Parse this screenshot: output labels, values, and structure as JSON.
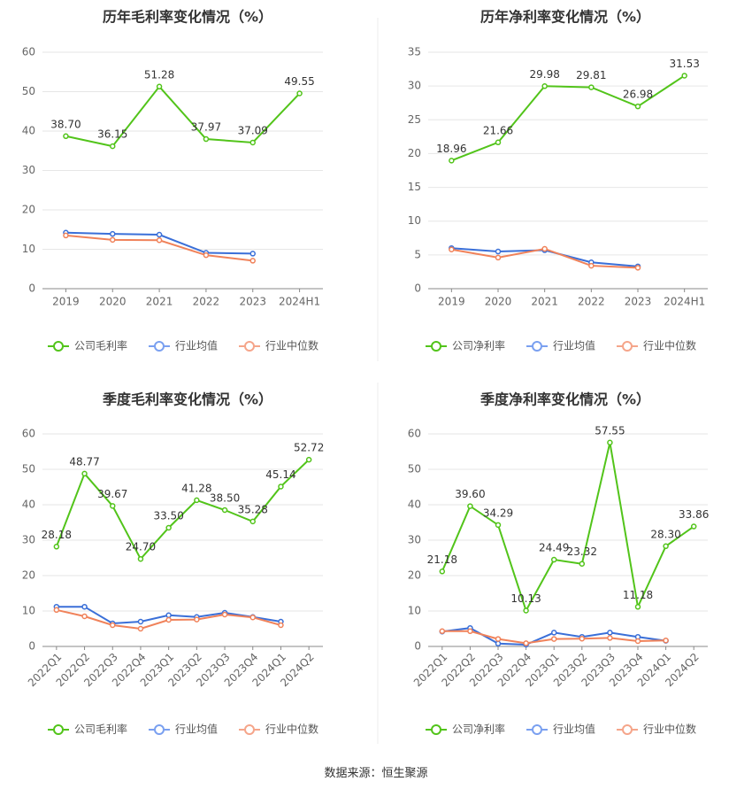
{
  "colors": {
    "company": "#52c41a",
    "industry_avg": "#3a6fd8",
    "industry_median": "#f0825a",
    "grid": "#e6e6e6",
    "axis": "#888888",
    "text": "#444444",
    "divider": "#eeeeee"
  },
  "legend_labels": {
    "gross_company": "公司毛利率",
    "net_company": "公司净利率",
    "industry_avg": "行业均值",
    "industry_median": "行业中位数"
  },
  "footer": "数据来源：恒生聚源",
  "chart_data": [
    {
      "type": "line",
      "title": "历年毛利率变化情况（%）",
      "categories": [
        "2019",
        "2020",
        "2021",
        "2022",
        "2023",
        "2024H1"
      ],
      "ylim": [
        0,
        60
      ],
      "yticks": [
        0,
        10,
        20,
        30,
        40,
        50,
        60
      ],
      "series": [
        {
          "name": "公司毛利率",
          "role": "company",
          "values": [
            38.7,
            36.15,
            51.28,
            37.97,
            37.09,
            49.55
          ],
          "labels": [
            "38.70",
            "36.15",
            "51.28",
            "37.97",
            "37.09",
            "49.55"
          ]
        },
        {
          "name": "行业均值",
          "role": "industry_avg",
          "values": [
            14.2,
            13.9,
            13.7,
            9.1,
            8.9,
            null
          ]
        },
        {
          "name": "行业中位数",
          "role": "industry_median",
          "values": [
            13.5,
            12.4,
            12.3,
            8.5,
            7.1,
            null
          ]
        }
      ],
      "legend": "bottom"
    },
    {
      "type": "line",
      "title": "历年净利率变化情况（%）",
      "categories": [
        "2019",
        "2020",
        "2021",
        "2022",
        "2023",
        "2024H1"
      ],
      "ylim": [
        0,
        35
      ],
      "yticks": [
        0,
        5,
        10,
        15,
        20,
        25,
        30,
        35
      ],
      "series": [
        {
          "name": "公司净利率",
          "role": "company",
          "values": [
            18.96,
            21.66,
            29.98,
            29.81,
            26.98,
            31.53
          ],
          "labels": [
            "18.96",
            "21.66",
            "29.98",
            "29.81",
            "26.98",
            "31.53"
          ]
        },
        {
          "name": "行业均值",
          "role": "industry_avg",
          "values": [
            6.0,
            5.5,
            5.7,
            3.9,
            3.3,
            null
          ]
        },
        {
          "name": "行业中位数",
          "role": "industry_median",
          "values": [
            5.8,
            4.6,
            5.9,
            3.4,
            3.1,
            null
          ]
        }
      ],
      "legend": "bottom"
    },
    {
      "type": "line",
      "title": "季度毛利率变化情况（%）",
      "categories": [
        "2022Q1",
        "2022Q2",
        "2022Q3",
        "2022Q4",
        "2023Q1",
        "2023Q2",
        "2023Q3",
        "2023Q4",
        "2024Q1",
        "2024Q2"
      ],
      "ylim": [
        0,
        60
      ],
      "yticks": [
        0,
        10,
        20,
        30,
        40,
        50,
        60
      ],
      "series": [
        {
          "name": "公司毛利率",
          "role": "company",
          "values": [
            28.18,
            48.77,
            39.67,
            24.7,
            33.5,
            41.28,
            38.5,
            35.28,
            45.14,
            52.72
          ],
          "labels": [
            "28.18",
            "48.77",
            "39.67",
            "24.70",
            "33.50",
            "41.28",
            "38.50",
            "35.28",
            "45.14",
            "52.72"
          ]
        },
        {
          "name": "行业均值",
          "role": "industry_avg",
          "values": [
            11.2,
            11.2,
            6.5,
            7.0,
            8.8,
            8.3,
            9.5,
            8.3,
            7.0,
            null
          ]
        },
        {
          "name": "行业中位数",
          "role": "industry_median",
          "values": [
            10.3,
            8.5,
            6.0,
            5.0,
            7.5,
            7.6,
            9.0,
            8.2,
            6.0,
            null
          ]
        }
      ],
      "legend": "bottom"
    },
    {
      "type": "line",
      "title": "季度净利率变化情况（%）",
      "categories": [
        "2022Q1",
        "2022Q2",
        "2022Q3",
        "2022Q4",
        "2023Q1",
        "2023Q2",
        "2023Q3",
        "2023Q4",
        "2024Q1",
        "2024Q2"
      ],
      "ylim": [
        0,
        60
      ],
      "yticks": [
        0,
        10,
        20,
        30,
        40,
        50,
        60
      ],
      "series": [
        {
          "name": "公司净利率",
          "role": "company",
          "values": [
            21.18,
            39.6,
            34.29,
            10.13,
            24.49,
            23.32,
            57.55,
            11.18,
            28.3,
            33.86
          ],
          "labels": [
            "21.18",
            "39.60",
            "34.29",
            "10.13",
            "24.49",
            "23.32",
            "57.55",
            "11.18",
            "28.30",
            "33.86"
          ]
        },
        {
          "name": "行业均值",
          "role": "industry_avg",
          "values": [
            4.2,
            5.2,
            0.8,
            0.5,
            3.9,
            2.7,
            3.9,
            2.7,
            1.6,
            null
          ]
        },
        {
          "name": "行业中位数",
          "role": "industry_median",
          "values": [
            4.3,
            4.3,
            2.1,
            0.9,
            2.1,
            2.2,
            2.4,
            1.5,
            1.7,
            null
          ]
        }
      ],
      "legend": "bottom"
    }
  ]
}
